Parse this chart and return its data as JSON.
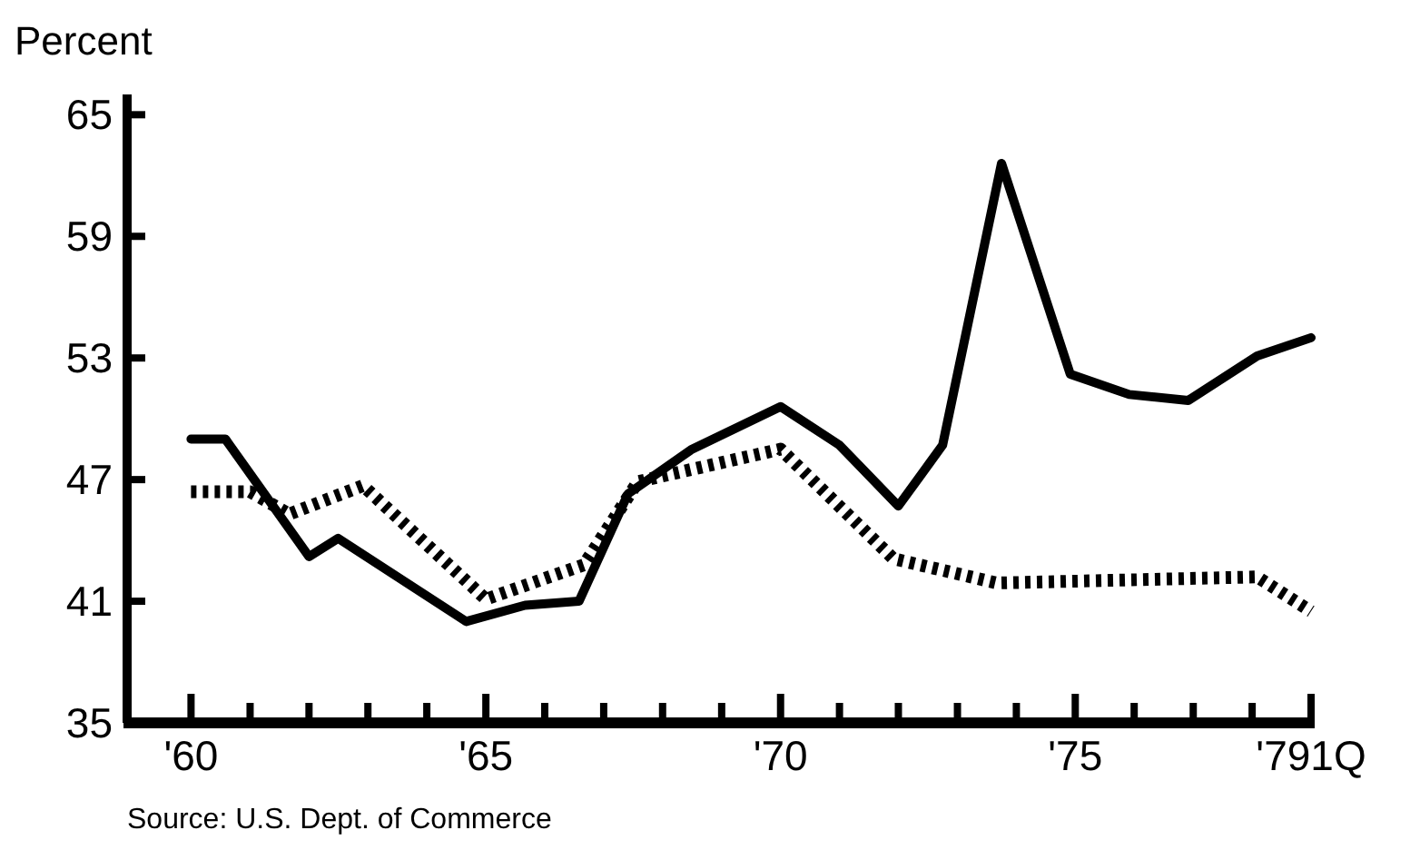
{
  "chart_data": {
    "type": "line",
    "ylabel": "Percent",
    "x": [
      "1960",
      "1960-08",
      "1962",
      "1962-07",
      "1964-09",
      "1965-09",
      "1966-08",
      "1967-06",
      "1968-07",
      "1970",
      "1971",
      "1972",
      "1972-10",
      "1973-10",
      "1974-12",
      "1975-12",
      "1976-12",
      "1978-02",
      "1979"
    ],
    "series": [
      {
        "color": "#000000",
        "line_style": "solid",
        "values": [
          49.0,
          49.0,
          43.2,
          44.1,
          40.0,
          40.8,
          41.0,
          46.3,
          48.5,
          50.6,
          48.7,
          45.7,
          48.7,
          62.6,
          52.2,
          51.2,
          50.9,
          53.1,
          54.0
        ]
      },
      {
        "color": "#000000",
        "line_style": "dotted",
        "x": [
          "1960",
          "1961",
          "1961-09",
          "1962-12",
          "1965",
          "1966-09",
          "1967-08",
          "1970",
          "1971-12",
          "1973-09",
          "1978-02",
          "1979"
        ],
        "values": [
          46.4,
          46.4,
          45.3,
          46.7,
          41.1,
          42.8,
          46.9,
          48.5,
          43.1,
          41.9,
          42.2,
          40.5
        ]
      }
    ],
    "xlim": [
      "1958-12",
      "1979"
    ],
    "xticks": [
      {
        "value": "1960",
        "label": "'60"
      },
      {
        "value": "1961",
        "label": null
      },
      {
        "value": "1962",
        "label": null
      },
      {
        "value": "1963",
        "label": null
      },
      {
        "value": "1964",
        "label": null
      },
      {
        "value": "1965",
        "label": "'65"
      },
      {
        "value": "1966",
        "label": null
      },
      {
        "value": "1967",
        "label": null
      },
      {
        "value": "1968",
        "label": null
      },
      {
        "value": "1969",
        "label": null
      },
      {
        "value": "1970",
        "label": "'70"
      },
      {
        "value": "1971",
        "label": null
      },
      {
        "value": "1972",
        "label": null
      },
      {
        "value": "1973",
        "label": null
      },
      {
        "value": "1974",
        "label": null
      },
      {
        "value": "1975",
        "label": "'75"
      },
      {
        "value": "1976",
        "label": null
      },
      {
        "value": "1977",
        "label": null
      },
      {
        "value": "1978",
        "label": null
      },
      {
        "value": "1979",
        "label": "'791Q"
      }
    ],
    "ylim": [
      35,
      66
    ],
    "yticks": [
      35,
      41,
      47,
      53,
      59,
      65
    ],
    "grid": false,
    "annotations": [
      "Source: U.S. Dept. of Commerce"
    ]
  }
}
